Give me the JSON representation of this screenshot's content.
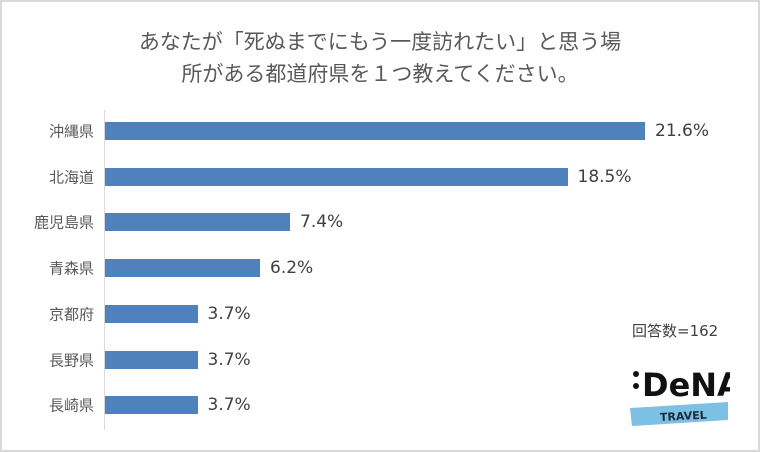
{
  "chart_data": {
    "type": "bar",
    "orientation": "horizontal",
    "title_lines": [
      "あなたが「死ぬまでにもう一度訪れたい」と思う場",
      "所がある都道府県を１つ教えてください。"
    ],
    "categories": [
      "沖縄県",
      "北海道",
      "鹿児島県",
      "青森県",
      "京都府",
      "長野県",
      "長崎県"
    ],
    "values": [
      21.6,
      18.5,
      7.4,
      6.2,
      3.7,
      3.7,
      3.7
    ],
    "value_labels": [
      "21.6%",
      "18.5%",
      "7.4%",
      "6.2%",
      "3.7%",
      "3.7%",
      "3.7%"
    ],
    "xlim": [
      0,
      22
    ],
    "grid": false,
    "bar_color": "#4f81bd"
  },
  "respondents": "回答数=162",
  "logo": {
    "brand": "DeNA",
    "sub": "TRAVEL",
    "accent": "#7cc1e4"
  }
}
